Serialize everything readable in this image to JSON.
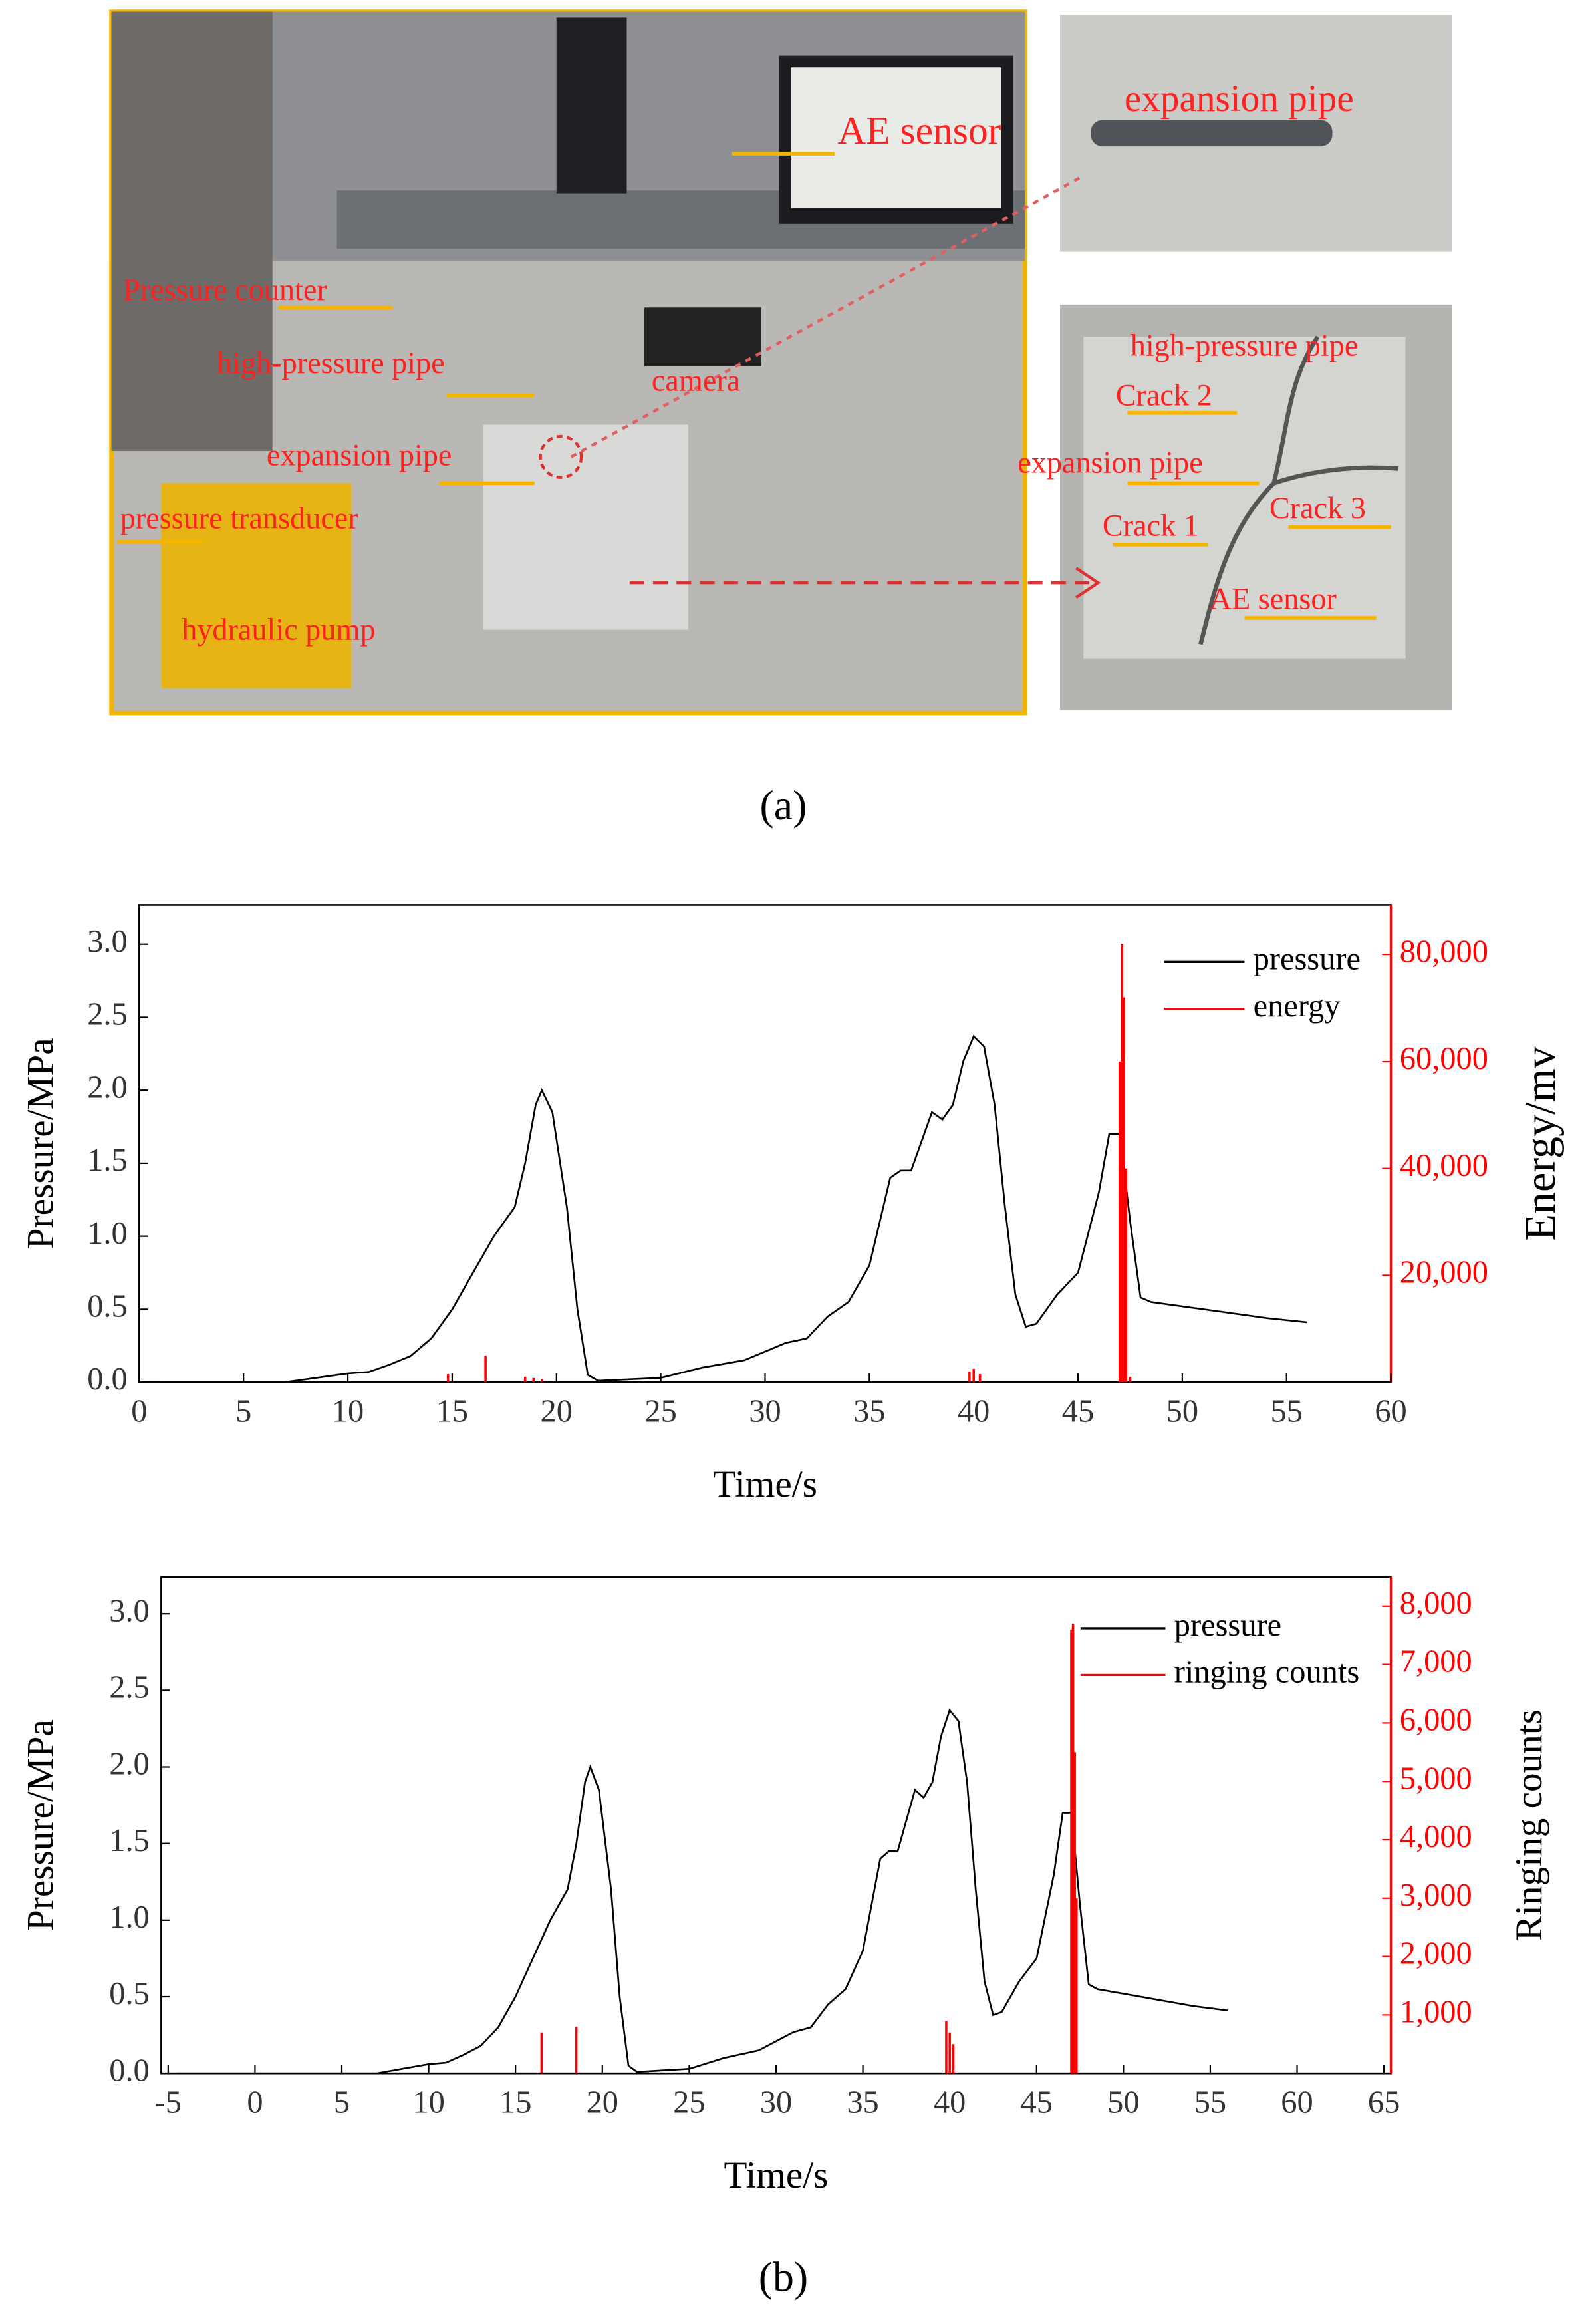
{
  "figure_a": {
    "main_photo_labels": [
      "AE sensor",
      "Pressure counter",
      "high-pressure pipe",
      "camera",
      "expansion pipe",
      "pressure transducer",
      "hydraulic pump"
    ],
    "top_inset_label": "expansion pipe",
    "bottom_inset_labels": [
      "high-pressure pipe",
      "Crack 2",
      "expansion pipe",
      "Crack 3",
      "Crack 1",
      "AE sensor"
    ],
    "caption": "(a)"
  },
  "caption_b": "(b)",
  "chart_data": [
    {
      "type": "line_spike",
      "xlabel": "Time/s",
      "ylabel": "Pressure/MPa",
      "y2label": "Energy/mv",
      "xlim": [
        0,
        60
      ],
      "xticks": [
        0,
        5,
        10,
        15,
        20,
        25,
        30,
        35,
        40,
        45,
        50,
        55,
        60
      ],
      "ylim": [
        0,
        3.27
      ],
      "yticks": [
        {
          "value": 0,
          "label": "0.0"
        },
        0.5,
        {
          "value": 1,
          "label": "1.0"
        },
        1.5,
        {
          "value": 2,
          "label": "2.0"
        },
        2.5,
        {
          "value": 3,
          "label": "3.0"
        }
      ],
      "y2lim": [
        0,
        89300
      ],
      "y2ticks": [
        {
          "value": 20000,
          "label": "20,000"
        },
        {
          "value": 40000,
          "label": "40,000"
        },
        {
          "value": 60000,
          "label": "60,000"
        },
        {
          "value": 80000,
          "label": "80,000"
        }
      ],
      "y2color": "#ff0000",
      "legend": "upper right",
      "series": [
        {
          "name": "pressure",
          "color": "#000000",
          "kind": "line",
          "x": [
            1,
            7,
            8,
            10,
            11,
            12,
            13,
            14,
            15,
            16,
            17,
            18,
            18.5,
            19,
            19.3,
            19.8,
            20.5,
            21,
            21.5,
            22,
            25,
            27,
            29,
            31,
            32,
            33,
            34,
            35,
            36,
            36.5,
            37,
            38,
            38.5,
            39,
            39.5,
            40,
            40.5,
            41,
            41.5,
            42,
            42.5,
            43,
            44,
            45,
            46,
            46.5,
            47,
            47.5,
            48,
            48.5,
            50,
            52,
            54,
            56
          ],
          "values": [
            0,
            0,
            0.02,
            0.06,
            0.07,
            0.12,
            0.18,
            0.3,
            0.5,
            0.75,
            1.0,
            1.2,
            1.5,
            1.9,
            2.0,
            1.85,
            1.2,
            0.5,
            0.05,
            0.01,
            0.03,
            0.1,
            0.15,
            0.27,
            0.3,
            0.45,
            0.55,
            0.8,
            1.4,
            1.45,
            1.45,
            1.85,
            1.8,
            1.9,
            2.2,
            2.37,
            2.3,
            1.9,
            1.2,
            0.6,
            0.38,
            0.4,
            0.6,
            0.75,
            1.3,
            1.7,
            1.7,
            1.1,
            0.58,
            0.55,
            0.52,
            0.48,
            0.44,
            0.41
          ]
        },
        {
          "name": "energy",
          "color": "#ff0000",
          "kind": "spike",
          "axis": "y2",
          "x": [
            14.8,
            16.6,
            18.5,
            18.9,
            19.3,
            39.8,
            40.0,
            40.3,
            47.0,
            47.1,
            47.2,
            47.3,
            47.5
          ],
          "values": [
            1500,
            5000,
            1000,
            800,
            600,
            2000,
            2500,
            1500,
            60000,
            82000,
            72000,
            40000,
            1000
          ]
        }
      ]
    },
    {
      "type": "line_spike",
      "xlabel": "Time/s",
      "ylabel": "Pressure/MPa",
      "y2label": "Ringing counts",
      "xlim": [
        -5.4,
        65.4
      ],
      "xticks": [
        -5,
        0,
        5,
        10,
        15,
        20,
        25,
        30,
        35,
        40,
        45,
        50,
        55,
        60,
        65
      ],
      "ylim": [
        0,
        3.24
      ],
      "yticks": [
        {
          "value": 0,
          "label": "0.0"
        },
        0.5,
        {
          "value": 1,
          "label": "1.0"
        },
        1.5,
        {
          "value": 2,
          "label": "2.0"
        },
        2.5,
        {
          "value": 3,
          "label": "3.0"
        }
      ],
      "y2lim": [
        0,
        8500
      ],
      "y2ticks": [
        {
          "value": 1000,
          "label": "1,000"
        },
        {
          "value": 2000,
          "label": "2,000"
        },
        {
          "value": 3000,
          "label": "3,000"
        },
        {
          "value": 4000,
          "label": "4,000"
        },
        {
          "value": 5000,
          "label": "5,000"
        },
        {
          "value": 6000,
          "label": "6,000"
        },
        {
          "value": 7000,
          "label": "7,000"
        },
        {
          "value": 8000,
          "label": "8,000"
        }
      ],
      "y2color": "#ff0000",
      "legend": "upper right",
      "series": [
        {
          "name": "pressure",
          "color": "#000000",
          "kind": "line",
          "x": [
            -4.5,
            7,
            8,
            10,
            11,
            12,
            13,
            14,
            15,
            16,
            17,
            18,
            18.5,
            19,
            19.3,
            19.8,
            20.5,
            21,
            21.5,
            22,
            25,
            27,
            29,
            31,
            32,
            33,
            34,
            35,
            36,
            36.5,
            37,
            38,
            38.5,
            39,
            39.5,
            40,
            40.5,
            41,
            41.5,
            42,
            42.5,
            43,
            44,
            45,
            46,
            46.5,
            47,
            47.5,
            48,
            48.5,
            50,
            52,
            54,
            56
          ],
          "values": [
            0,
            0,
            0.02,
            0.06,
            0.07,
            0.12,
            0.18,
            0.3,
            0.5,
            0.75,
            1.0,
            1.2,
            1.5,
            1.9,
            2.0,
            1.85,
            1.2,
            0.5,
            0.05,
            0.01,
            0.03,
            0.1,
            0.15,
            0.27,
            0.3,
            0.45,
            0.55,
            0.8,
            1.4,
            1.45,
            1.45,
            1.85,
            1.8,
            1.9,
            2.2,
            2.37,
            2.3,
            1.9,
            1.2,
            0.6,
            0.38,
            0.4,
            0.6,
            0.75,
            1.3,
            1.7,
            1.7,
            1.1,
            0.58,
            0.55,
            0.52,
            0.48,
            0.44,
            0.41
          ]
        },
        {
          "name": "ringing counts",
          "color": "#ff0000",
          "kind": "spike",
          "axis": "y2",
          "x": [
            16.5,
            18.5,
            39.8,
            40.0,
            40.2,
            47.0,
            47.1,
            47.2,
            47.3
          ],
          "values": [
            700,
            800,
            900,
            700,
            500,
            7600,
            7700,
            5500,
            3000
          ]
        }
      ]
    }
  ]
}
